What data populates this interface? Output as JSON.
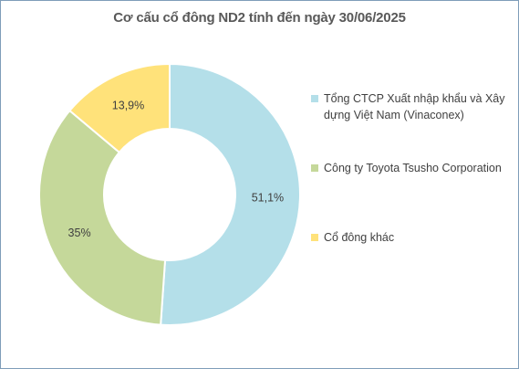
{
  "chart_data": {
    "type": "pie",
    "variant": "donut",
    "title": "Cơ cấu cổ đông ND2 tính đến ngày 30/06/2025",
    "legend_position": "right",
    "slices": [
      {
        "name": "Tổng CTCP Xuất nhập khẩu và Xây dựng Việt Nam (Vinaconex)",
        "value": 51.1,
        "label": "51,1%",
        "color": "#b4dfe9"
      },
      {
        "name": "Công ty Toyota Tsusho Corporation",
        "value": 35,
        "label": "35%",
        "color": "#c5d89a"
      },
      {
        "name": "Cổ đông khác",
        "value": 13.9,
        "label": "13,9%",
        "color": "#ffe27a"
      }
    ]
  }
}
